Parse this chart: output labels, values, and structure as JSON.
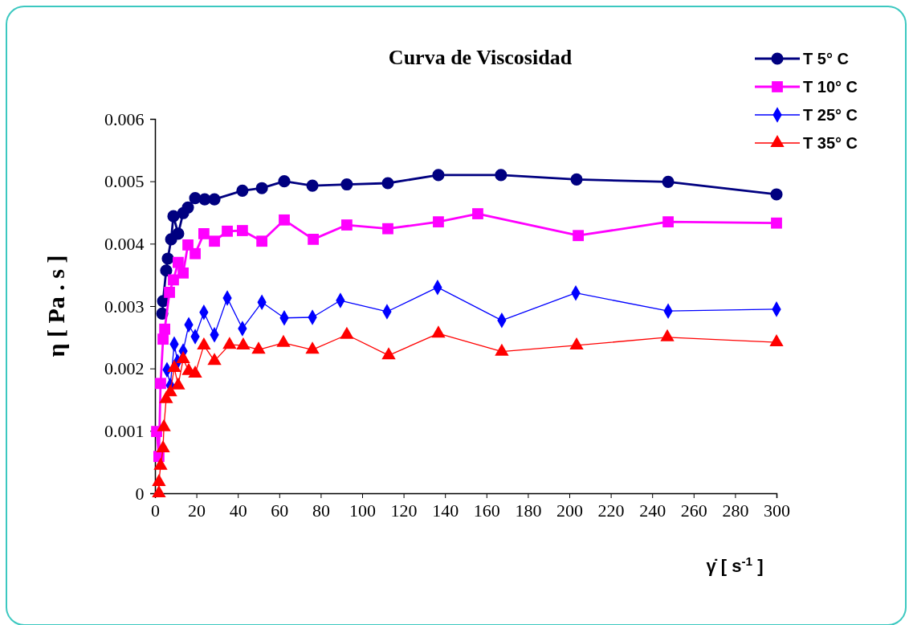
{
  "chart_data": {
    "type": "line",
    "title": "Curva de Viscosidad",
    "xlabel": "γ̇   [ s$^{-1}$ ]",
    "ylabel": "η  [ Pa . s ]",
    "xlim": [
      0,
      300
    ],
    "xticks": [
      0,
      20,
      40,
      60,
      80,
      100,
      120,
      140,
      160,
      180,
      200,
      220,
      240,
      260,
      280,
      300
    ],
    "ylim": [
      0,
      0.006
    ],
    "yticks": [
      0,
      0.001,
      0.002,
      0.003,
      0.004,
      0.005,
      0.006
    ],
    "grid": false,
    "legend": "top right",
    "line_style": "solid",
    "series": [
      {
        "name": "T 5° C",
        "color": "#000080",
        "marker": "circle",
        "x": [
          3.5,
          3.9,
          5.4,
          6.2,
          7.8,
          8.9,
          11.2,
          13.6,
          15.9,
          19.4,
          24,
          28.7,
          42.2,
          51.6,
          62.4,
          76,
          92.6,
          112.4,
          136.8,
          167,
          203.5,
          247.7,
          300
        ],
        "values": [
          0.00288,
          0.00308,
          0.00357,
          0.00376,
          0.00407,
          0.00444,
          0.00416,
          0.00449,
          0.00458,
          0.00473,
          0.00471,
          0.00471,
          0.00485,
          0.00489,
          0.005,
          0.00493,
          0.00495,
          0.00497,
          0.0051,
          0.0051,
          0.00503,
          0.00499,
          0.00479
        ]
      },
      {
        "name": "T 10° C",
        "color": "#ff00ff",
        "marker": "square",
        "x": [
          0.8,
          1.9,
          2.7,
          3.9,
          4.7,
          7,
          8.9,
          11.2,
          13.6,
          15.9,
          19.4,
          23.6,
          28.7,
          34.9,
          42.2,
          51.6,
          62.4,
          76.4,
          92.6,
          112.4,
          136.8,
          155.8,
          204.3,
          247.7,
          300
        ],
        "values": [
          0.00099,
          0.00059,
          0.00176,
          0.00247,
          0.00263,
          0.00322,
          0.00342,
          0.0037,
          0.00353,
          0.00398,
          0.00384,
          0.00416,
          0.00404,
          0.0042,
          0.00421,
          0.00404,
          0.00438,
          0.00407,
          0.0043,
          0.00424,
          0.00435,
          0.00448,
          0.00413,
          0.00435,
          0.00433
        ]
      },
      {
        "name": "T 25° C",
        "color": "#0000ff",
        "marker": "diamond",
        "x": [
          5.8,
          7.4,
          9.3,
          10.9,
          13.6,
          16.3,
          19.4,
          23.6,
          28.7,
          34.9,
          42.2,
          51.6,
          62.4,
          76,
          89.5,
          112,
          136.4,
          167.4,
          203.1,
          247.7,
          300
        ],
        "values": [
          0.00198,
          0.00173,
          0.00239,
          0.00211,
          0.00228,
          0.0027,
          0.00251,
          0.0029,
          0.00254,
          0.00313,
          0.00264,
          0.00306,
          0.00281,
          0.00282,
          0.00309,
          0.00291,
          0.0033,
          0.00277,
          0.00321,
          0.00292,
          0.00295
        ]
      },
      {
        "name": "T 35° C",
        "color": "#ff0000",
        "marker": "triangle",
        "x": [
          1.9,
          1.9,
          2.7,
          3.9,
          4.3,
          5.4,
          7.4,
          9.3,
          11.2,
          13.6,
          16.3,
          19.4,
          23.6,
          28.7,
          36,
          42.6,
          50,
          62,
          76,
          92.6,
          112.8,
          136.8,
          167.4,
          203.5,
          247.3,
          300
        ],
        "values": [
          0,
          0.00018,
          0.00044,
          0.00072,
          0.00106,
          0.00151,
          0.00162,
          0.00201,
          0.00173,
          0.00215,
          0.00196,
          0.00192,
          0.00237,
          0.00212,
          0.00238,
          0.00237,
          0.0023,
          0.00241,
          0.0023,
          0.00254,
          0.00221,
          0.00256,
          0.00227,
          0.00237,
          0.0025,
          0.00242
        ]
      }
    ]
  }
}
